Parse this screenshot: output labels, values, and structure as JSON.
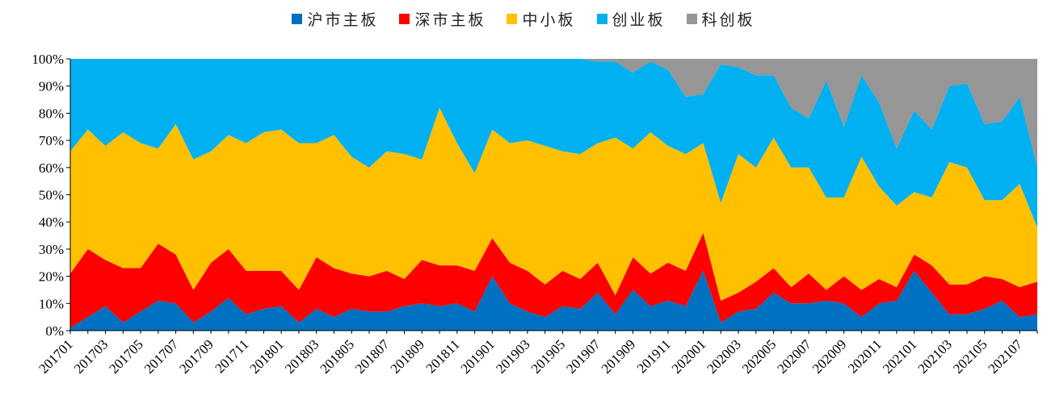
{
  "chart_data": {
    "type": "area",
    "stacked": true,
    "percent": true,
    "ylim": [
      0,
      100
    ],
    "yticks": [
      "0%",
      "10%",
      "20%",
      "30%",
      "40%",
      "50%",
      "60%",
      "70%",
      "80%",
      "90%",
      "100%"
    ],
    "grid": false,
    "legend_position": "top-center",
    "x": [
      "201701",
      "201702",
      "201703",
      "201704",
      "201705",
      "201706",
      "201707",
      "201708",
      "201709",
      "201710",
      "201711",
      "201712",
      "201801",
      "201802",
      "201803",
      "201804",
      "201805",
      "201806",
      "201807",
      "201808",
      "201809",
      "201810",
      "201811",
      "201812",
      "201901",
      "201902",
      "201903",
      "201904",
      "201905",
      "201906",
      "201907",
      "201908",
      "201909",
      "201910",
      "201911",
      "201912",
      "202001",
      "202002",
      "202003",
      "202004",
      "202005",
      "202006",
      "202007",
      "202008",
      "202009",
      "202010",
      "202011",
      "202012",
      "202101",
      "202102",
      "202103",
      "202104",
      "202105",
      "202106",
      "202107",
      "202108"
    ],
    "xtick_labels": [
      "201701",
      "201703",
      "201705",
      "201707",
      "201709",
      "201711",
      "201801",
      "201803",
      "201805",
      "201807",
      "201809",
      "201811",
      "201901",
      "201903",
      "201905",
      "201907",
      "201909",
      "201911",
      "202001",
      "202003",
      "202005",
      "202007",
      "202009",
      "202011",
      "202101",
      "202103",
      "202105",
      "202107"
    ],
    "series": [
      {
        "name": "沪市主板",
        "color": "#0070C0",
        "values": [
          1,
          5,
          9,
          3,
          7,
          11,
          10,
          3,
          7,
          12,
          6,
          8,
          9,
          3,
          8,
          5,
          8,
          7,
          7,
          9,
          10,
          9,
          10,
          7,
          20,
          10,
          7,
          5,
          9,
          8,
          14,
          6,
          15,
          9,
          11,
          9,
          22,
          3,
          7,
          8,
          14,
          10,
          10,
          11,
          10,
          5,
          10,
          11,
          22,
          14,
          6,
          6,
          8,
          11,
          5,
          6
        ]
      },
      {
        "name": "深市主板",
        "color": "#FF0000",
        "values": [
          20,
          25,
          17,
          20,
          16,
          21,
          18,
          12,
          18,
          18,
          16,
          14,
          13,
          12,
          19,
          18,
          13,
          13,
          15,
          10,
          16,
          15,
          14,
          15,
          14,
          15,
          15,
          12,
          13,
          11,
          11,
          7,
          12,
          12,
          14,
          13,
          14,
          8,
          7,
          10,
          9,
          6,
          11,
          4,
          10,
          10,
          9,
          5,
          6,
          10,
          11,
          11,
          12,
          8,
          11,
          12
        ]
      },
      {
        "name": "中小板",
        "color": "#FFC000",
        "values": [
          45,
          44,
          42,
          50,
          46,
          35,
          48,
          48,
          41,
          42,
          47,
          51,
          52,
          54,
          42,
          49,
          43,
          40,
          44,
          46,
          37,
          58,
          45,
          36,
          40,
          44,
          48,
          51,
          44,
          46,
          44,
          58,
          40,
          52,
          43,
          43,
          33,
          36,
          51,
          42,
          48,
          44,
          39,
          34,
          29,
          49,
          34,
          30,
          23,
          25,
          45,
          43,
          28,
          29,
          38,
          20
        ]
      },
      {
        "name": "创业板",
        "color": "#00B0F0",
        "values": [
          34,
          26,
          32,
          27,
          31,
          33,
          24,
          37,
          34,
          28,
          31,
          27,
          26,
          31,
          31,
          28,
          36,
          40,
          34,
          35,
          37,
          18,
          31,
          42,
          26,
          31,
          30,
          32,
          34,
          35,
          30,
          28,
          28,
          26,
          28,
          21,
          18,
          51,
          32,
          34,
          23,
          22,
          18,
          43,
          26,
          30,
          31,
          21,
          30,
          25,
          28,
          31,
          28,
          29,
          32,
          22
        ]
      },
      {
        "name": "科创板",
        "color": "#969696",
        "values": [
          0,
          0,
          0,
          0,
          0,
          0,
          0,
          0,
          0,
          0,
          0,
          0,
          0,
          0,
          0,
          0,
          0,
          0,
          0,
          0,
          0,
          0,
          0,
          0,
          0,
          0,
          0,
          0,
          0,
          0,
          1,
          1,
          5,
          1,
          4,
          14,
          13,
          2,
          3,
          6,
          6,
          18,
          22,
          8,
          25,
          6,
          16,
          33,
          19,
          26,
          10,
          9,
          24,
          23,
          14,
          40
        ]
      }
    ]
  }
}
